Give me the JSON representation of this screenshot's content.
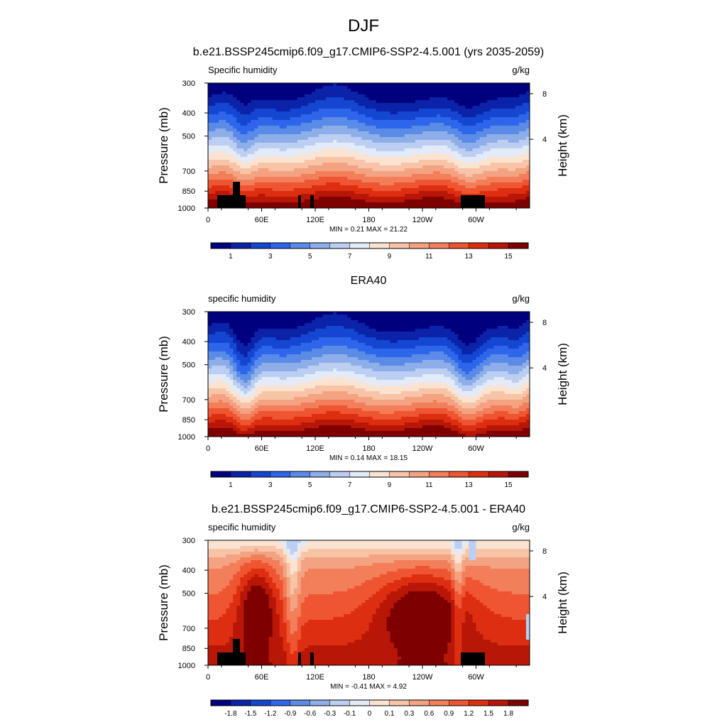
{
  "figure": {
    "title": "DJF"
  },
  "chart_data": [
    {
      "type": "heatmap",
      "title": "b.e21.BSSP245cmip6.f09_g17.CMIP6-SSP2-4.5.001 (yrs 2035-2059)",
      "left_label": "Specific humidity",
      "units": "g/kg",
      "ylabel": "Pressure (mb)",
      "ylabel_right": "Height (km)",
      "x_ticks": [
        "0",
        "60E",
        "120E",
        "180",
        "120W",
        "60W"
      ],
      "y_ticks": [
        "300",
        "400",
        "500",
        "700",
        "850",
        "1000"
      ],
      "y_ticks_right": [
        "8",
        "4"
      ],
      "stats": "MIN =   0.21  MAX =  21.22",
      "colorbar_labels": [
        "1",
        "3",
        "5",
        "7",
        "9",
        "11",
        "13",
        "15"
      ],
      "variant": "abs"
    },
    {
      "type": "heatmap",
      "title": "ERA40",
      "left_label": "specific humidity",
      "units": "g/kg",
      "ylabel": "Pressure (mb)",
      "ylabel_right": "Height (km)",
      "x_ticks": [
        "0",
        "60E",
        "120E",
        "180",
        "120W",
        "60W"
      ],
      "y_ticks": [
        "300",
        "400",
        "500",
        "700",
        "850",
        "1000"
      ],
      "y_ticks_right": [
        "8",
        "4"
      ],
      "stats": "MIN =   0.14  MAX =  18.15",
      "colorbar_labels": [
        "1",
        "3",
        "5",
        "7",
        "9",
        "11",
        "13",
        "15"
      ],
      "variant": "obs"
    },
    {
      "type": "heatmap",
      "title": "b.e21.BSSP245cmip6.f09_g17.CMIP6-SSP2-4.5.001 - ERA40",
      "left_label": "specific humidity",
      "units": "g/kg",
      "ylabel": "Pressure (mb)",
      "ylabel_right": "Height (km)",
      "x_ticks": [
        "0",
        "60E",
        "120E",
        "180",
        "120W",
        "60W"
      ],
      "y_ticks": [
        "300",
        "400",
        "500",
        "700",
        "850",
        "1000"
      ],
      "y_ticks_right": [
        "8",
        "4"
      ],
      "stats": "MIN =  -0.41  MAX =   4.92",
      "colorbar_labels": [
        "-1.8",
        "-1.5",
        "-1.2",
        "-0.9",
        "-0.6",
        "-0.3",
        "-0.1",
        "0",
        "0.1",
        "0.3",
        "0.6",
        "0.9",
        "1.2",
        "1.5",
        "1.8"
      ],
      "variant": "diff"
    }
  ],
  "colors": {
    "palette": [
      "#00007f",
      "#0a23a8",
      "#1446d2",
      "#2e66eb",
      "#5a8be6",
      "#8eaee9",
      "#bccff2",
      "#e3ebf8",
      "#fbe3d1",
      "#f7c4a7",
      "#f4a382",
      "#f27e5a",
      "#ef5532",
      "#de2e12",
      "#b81607",
      "#7f0000"
    ],
    "topography": "#000000"
  }
}
